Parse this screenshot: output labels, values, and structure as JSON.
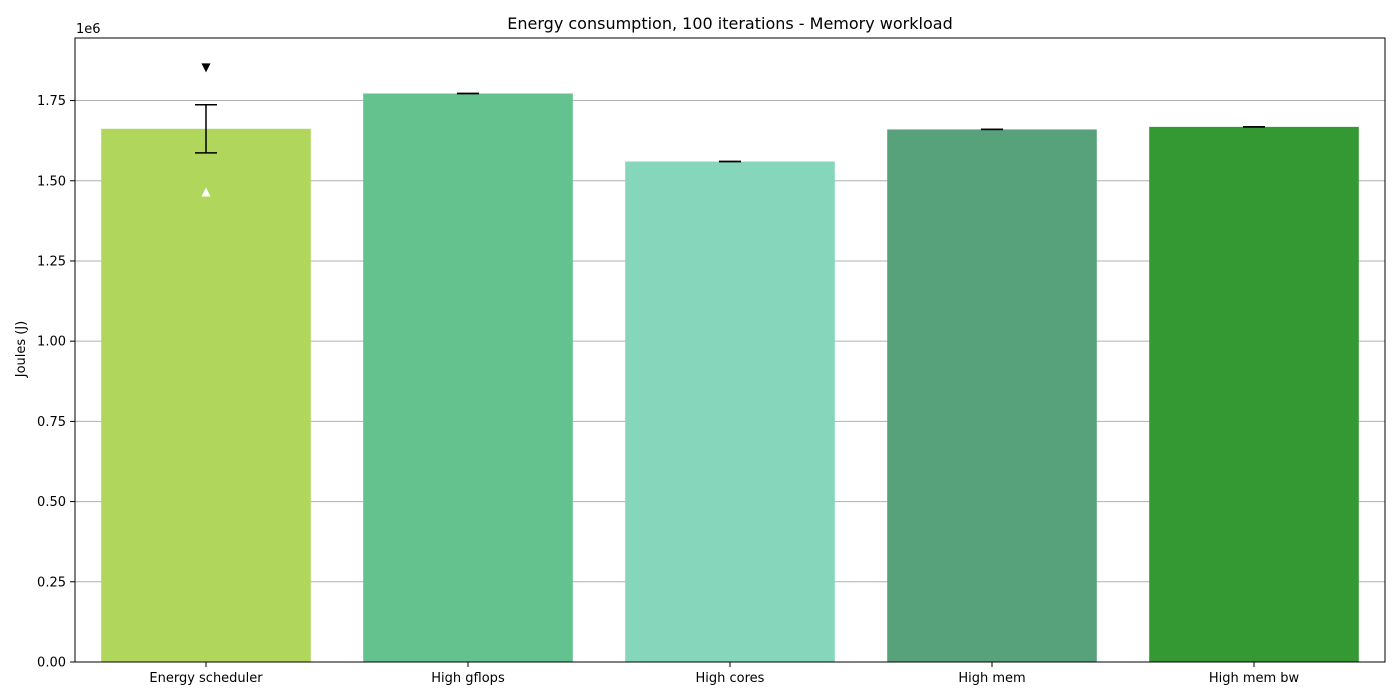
{
  "chart_data": {
    "type": "bar",
    "title": "Energy consumption, 100 iterations - Memory workload",
    "xlabel": "",
    "ylabel": "Joules (J)",
    "y_scale_label": "1e6",
    "ylim": [
      0,
      1.945
    ],
    "yticks": [
      0.0,
      0.25,
      0.5,
      0.75,
      1.0,
      1.25,
      1.5,
      1.75
    ],
    "ytick_labels": [
      "0.00",
      "0.25",
      "0.50",
      "0.75",
      "1.00",
      "1.25",
      "1.50",
      "1.75"
    ],
    "grid": "horizontal",
    "categories": [
      "Energy scheduler",
      "High gflops",
      "High cores",
      "High mem",
      "High mem bw"
    ],
    "values": [
      1.662,
      1.772,
      1.56,
      1.66,
      1.668
    ],
    "error": [
      0.075,
      0.0,
      0.0,
      0.0,
      0.0
    ],
    "colors": [
      "#b0d75c",
      "#64c28e",
      "#85d6bb",
      "#58a27b",
      "#349833"
    ],
    "markers": [
      {
        "category_index": 0,
        "value": 1.852,
        "symbol": "triangle-down",
        "color": "#000000"
      },
      {
        "category_index": 0,
        "value": 1.465,
        "symbol": "triangle-up",
        "color": "#ffffff"
      }
    ]
  }
}
